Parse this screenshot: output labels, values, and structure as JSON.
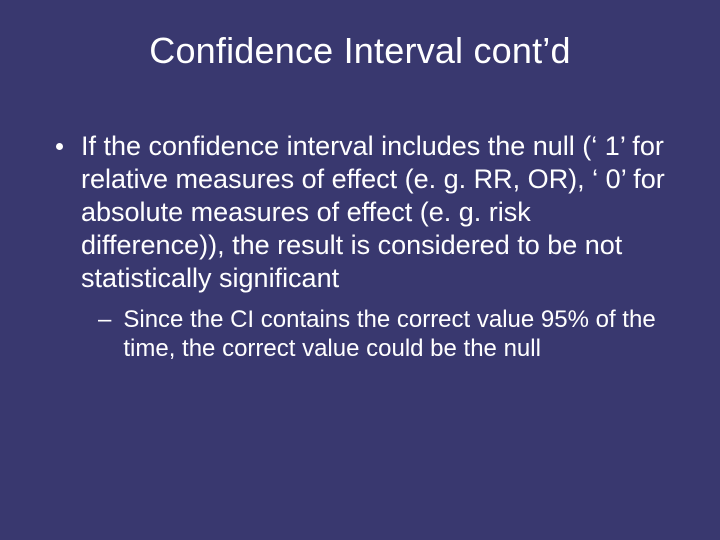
{
  "background_color": "#39386f",
  "text_color": "#ffffff",
  "font_family": "Arial",
  "title": {
    "text": "Confidence Interval cont’d",
    "fontsize": 36,
    "weight": 400,
    "align": "center"
  },
  "bullets": [
    {
      "level": 1,
      "marker": "disc",
      "fontsize": 27,
      "text": "If the confidence interval includes the null (‘ 1’ for relative measures of effect (e. g. RR, OR), ‘ 0’ for absolute measures of effect (e. g. risk difference)), the result is considered to be not statistically significant"
    },
    {
      "level": 2,
      "marker": "dash",
      "fontsize": 24,
      "text": "Since the CI contains the correct value 95% of the time, the correct value could be the null"
    }
  ]
}
